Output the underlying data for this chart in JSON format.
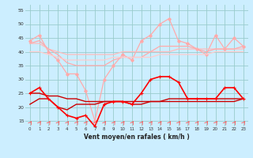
{
  "xlabel": "Vent moyen/en rafales ( km/h )",
  "background_color": "#cceeff",
  "grid_color": "#99cccc",
  "x_values": [
    0,
    1,
    2,
    3,
    4,
    5,
    6,
    7,
    8,
    9,
    10,
    11,
    12,
    13,
    14,
    15,
    16,
    17,
    18,
    19,
    20,
    21,
    22,
    23
  ],
  "ylim": [
    13,
    57
  ],
  "yticks": [
    15,
    20,
    25,
    30,
    35,
    40,
    45,
    50,
    55
  ],
  "line_rafales_peaks": [
    44,
    46,
    40,
    37,
    32,
    32,
    26,
    15,
    30,
    35,
    39,
    37,
    44,
    46,
    50,
    52,
    44,
    43,
    41,
    39,
    46,
    41,
    45,
    42
  ],
  "line_rafales_smooth": [
    43,
    43,
    41,
    40,
    39,
    39,
    39,
    39,
    39,
    39,
    40,
    40,
    40,
    40,
    40,
    40,
    41,
    41,
    41,
    41,
    41,
    41,
    41,
    41
  ],
  "line_vent_upper": [
    43,
    44,
    41,
    39,
    36,
    35,
    35,
    35,
    35,
    37,
    38,
    38,
    38,
    40,
    42,
    42,
    42,
    42,
    41,
    40,
    41,
    41,
    41,
    42
  ],
  "line_vent_lower": [
    40,
    40,
    39,
    38,
    37,
    37,
    37,
    37,
    37,
    38,
    38,
    38,
    38,
    38,
    39,
    39,
    39,
    39,
    39,
    39,
    40,
    40,
    40,
    40
  ],
  "line_vent_moyen": [
    25,
    27,
    23,
    20,
    17,
    16,
    17,
    13,
    21,
    22,
    22,
    21,
    25,
    30,
    31,
    31,
    29,
    23,
    23,
    23,
    23,
    27,
    27,
    23
  ],
  "line_vent_mean1": [
    25,
    25,
    24,
    24,
    23,
    23,
    22,
    22,
    22,
    22,
    22,
    22,
    22,
    22,
    22,
    22,
    22,
    22,
    22,
    22,
    22,
    22,
    22,
    23
  ],
  "line_vent_mean2": [
    21,
    23,
    23,
    20,
    19,
    21,
    21,
    21,
    22,
    22,
    22,
    21,
    21,
    22,
    22,
    23,
    23,
    23,
    23,
    23,
    23,
    23,
    23,
    23
  ]
}
